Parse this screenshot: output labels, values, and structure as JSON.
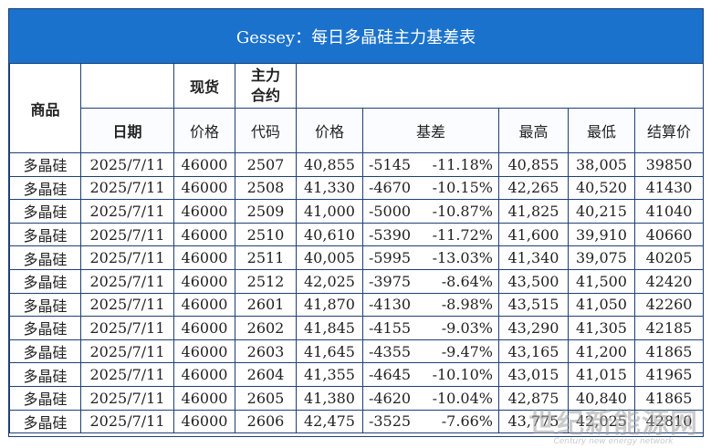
{
  "title": "Gessey：每日多晶硅主力基差表",
  "header_row1": {
    "product": "商品",
    "spot": "现货",
    "main_contract_line1": "主力",
    "main_contract_line2": "合约"
  },
  "header_row2": {
    "date": "日期",
    "spot_price": "价格",
    "code": "代码",
    "price": "价格",
    "basis": "基差",
    "high": "最高",
    "low": "最低",
    "settle": "结算价"
  },
  "rows": [
    {
      "product": "多晶硅",
      "date": "2025/7/11",
      "spot": "46000",
      "code": "2507",
      "price": "40,855",
      "basis": "-5145",
      "basis_pct": "-11.18%",
      "high": "40,855",
      "low": "38,005",
      "settle": "39850"
    },
    {
      "product": "多晶硅",
      "date": "2025/7/11",
      "spot": "46000",
      "code": "2508",
      "price": "41,330",
      "basis": "-4670",
      "basis_pct": "-10.15%",
      "high": "42,265",
      "low": "40,520",
      "settle": "41430"
    },
    {
      "product": "多晶硅",
      "date": "2025/7/11",
      "spot": "46000",
      "code": "2509",
      "price": "41,000",
      "basis": "-5000",
      "basis_pct": "-10.87%",
      "high": "41,825",
      "low": "40,215",
      "settle": "41040"
    },
    {
      "product": "多晶硅",
      "date": "2025/7/11",
      "spot": "46000",
      "code": "2510",
      "price": "40,610",
      "basis": "-5390",
      "basis_pct": "-11.72%",
      "high": "41,600",
      "low": "39,910",
      "settle": "40660"
    },
    {
      "product": "多晶硅",
      "date": "2025/7/11",
      "spot": "46000",
      "code": "2511",
      "price": "40,005",
      "basis": "-5995",
      "basis_pct": "-13.03%",
      "high": "41,340",
      "low": "39,075",
      "settle": "40205"
    },
    {
      "product": "多晶硅",
      "date": "2025/7/11",
      "spot": "46000",
      "code": "2512",
      "price": "42,025",
      "basis": "-3975",
      "basis_pct": "-8.64%",
      "high": "43,500",
      "low": "41,500",
      "settle": "42420"
    },
    {
      "product": "多晶硅",
      "date": "2025/7/11",
      "spot": "46000",
      "code": "2601",
      "price": "41,870",
      "basis": "-4130",
      "basis_pct": "-8.98%",
      "high": "43,515",
      "low": "41,050",
      "settle": "42260"
    },
    {
      "product": "多晶硅",
      "date": "2025/7/11",
      "spot": "46000",
      "code": "2602",
      "price": "41,845",
      "basis": "-4155",
      "basis_pct": "-9.03%",
      "high": "43,290",
      "low": "41,305",
      "settle": "42185"
    },
    {
      "product": "多晶硅",
      "date": "2025/7/11",
      "spot": "46000",
      "code": "2603",
      "price": "41,645",
      "basis": "-4355",
      "basis_pct": "-9.47%",
      "high": "43,165",
      "low": "41,200",
      "settle": "41865"
    },
    {
      "product": "多晶硅",
      "date": "2025/7/11",
      "spot": "46000",
      "code": "2604",
      "price": "41,355",
      "basis": "-4645",
      "basis_pct": "-10.10%",
      "high": "43,015",
      "low": "41,015",
      "settle": "41965"
    },
    {
      "product": "多晶硅",
      "date": "2025/7/11",
      "spot": "46000",
      "code": "2605",
      "price": "41,380",
      "basis": "-4620",
      "basis_pct": "-10.04%",
      "high": "42,875",
      "low": "40,840",
      "settle": "41865"
    },
    {
      "product": "多晶硅",
      "date": "2025/7/11",
      "spot": "46000",
      "code": "2606",
      "price": "42,475",
      "basis": "-3525",
      "basis_pct": "-7.66%",
      "high": "43,775",
      "low": "42,025",
      "settle": "42810"
    }
  ],
  "watermark": {
    "main": "世纪新能源网",
    "sub": "Century new energy network"
  },
  "colors": {
    "title_bg": "#1a72cc",
    "border": "#1f3f75",
    "blue_text": "#3b4fb8",
    "green_text": "#2aa752"
  }
}
